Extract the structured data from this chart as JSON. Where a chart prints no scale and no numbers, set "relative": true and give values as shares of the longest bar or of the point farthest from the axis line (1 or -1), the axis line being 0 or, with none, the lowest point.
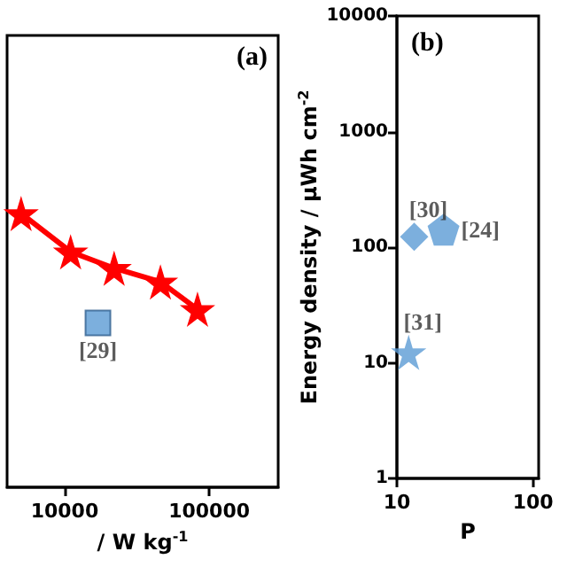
{
  "chart_data": [
    {
      "type": "line",
      "relative": true,
      "log": "x",
      "xlabel": "/ W kg$^{-1}$",
      "xlim": [
        4000,
        300000
      ],
      "xticks": [
        10000,
        100000
      ],
      "grid": false,
      "annotations": [
        "(a)"
      ],
      "series": [
        {
          "color": "#ff0000",
          "marker": "star",
          "line_style": "solid",
          "x": [
            5000,
            11000,
            22000,
            46000,
            83000
          ],
          "values": [
            1,
            0.86,
            0.8,
            0.75,
            0.65
          ]
        },
        {
          "name": "[29]",
          "type": "scatter",
          "color": "#5b9bd5",
          "marker": "square",
          "x": [
            17000
          ],
          "values": [
            0.6
          ]
        }
      ]
    },
    {
      "type": "scatter",
      "log": "xy",
      "ylabel": "Energy density / μWh cm$^{-2}$",
      "xlabel": "P",
      "xlim": [
        10,
        110
      ],
      "ylim": [
        1,
        10000
      ],
      "xticks": [
        10,
        100
      ],
      "yticks": [
        1,
        10,
        100,
        1000,
        10000
      ],
      "grid": false,
      "annotations": [
        "(b)"
      ],
      "series": [
        {
          "name": "[30]",
          "color": "#5b9bd5",
          "marker": "diamond",
          "x": [
            13.4
          ],
          "values": [
            123
          ]
        },
        {
          "name": "[24]",
          "color": "#5b9bd5",
          "x": [
            22
          ],
          "values": [
            142
          ]
        },
        {
          "name": "[31]",
          "color": "#5b9bd5",
          "marker": "star",
          "x": [
            12.2
          ],
          "values": [
            12.3
          ]
        }
      ]
    }
  ]
}
